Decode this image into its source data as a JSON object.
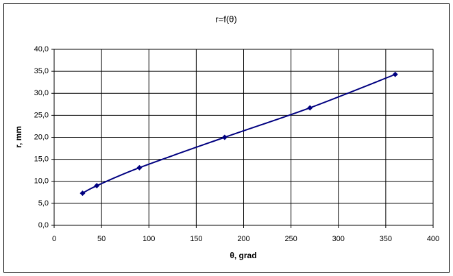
{
  "chart_data": {
    "type": "line",
    "title": "r=f(θ)",
    "x_label": "θ, grad",
    "y_label": "r, mm",
    "x": [
      30,
      45,
      90,
      180,
      270,
      360
    ],
    "series": [
      {
        "name": "r",
        "color": "#000080",
        "values": [
          7.3,
          9.0,
          13.1,
          20.0,
          26.7,
          34.3
        ]
      }
    ],
    "xlim": [
      0,
      400
    ],
    "xticks": [
      0,
      50,
      100,
      150,
      200,
      250,
      300,
      350,
      400
    ],
    "ylim": [
      0,
      40
    ],
    "yticks": [
      {
        "value": 0,
        "label": "0,0"
      },
      {
        "value": 5,
        "label": "5,0"
      },
      {
        "value": 10,
        "label": "10,0"
      },
      {
        "value": 15,
        "label": "15,0"
      },
      {
        "value": 20,
        "label": "20,0"
      },
      {
        "value": 25,
        "label": "25,0"
      },
      {
        "value": 30,
        "label": "30,0"
      },
      {
        "value": 35,
        "label": "35,0"
      },
      {
        "value": 40,
        "label": "40,0"
      }
    ],
    "grid": true
  }
}
